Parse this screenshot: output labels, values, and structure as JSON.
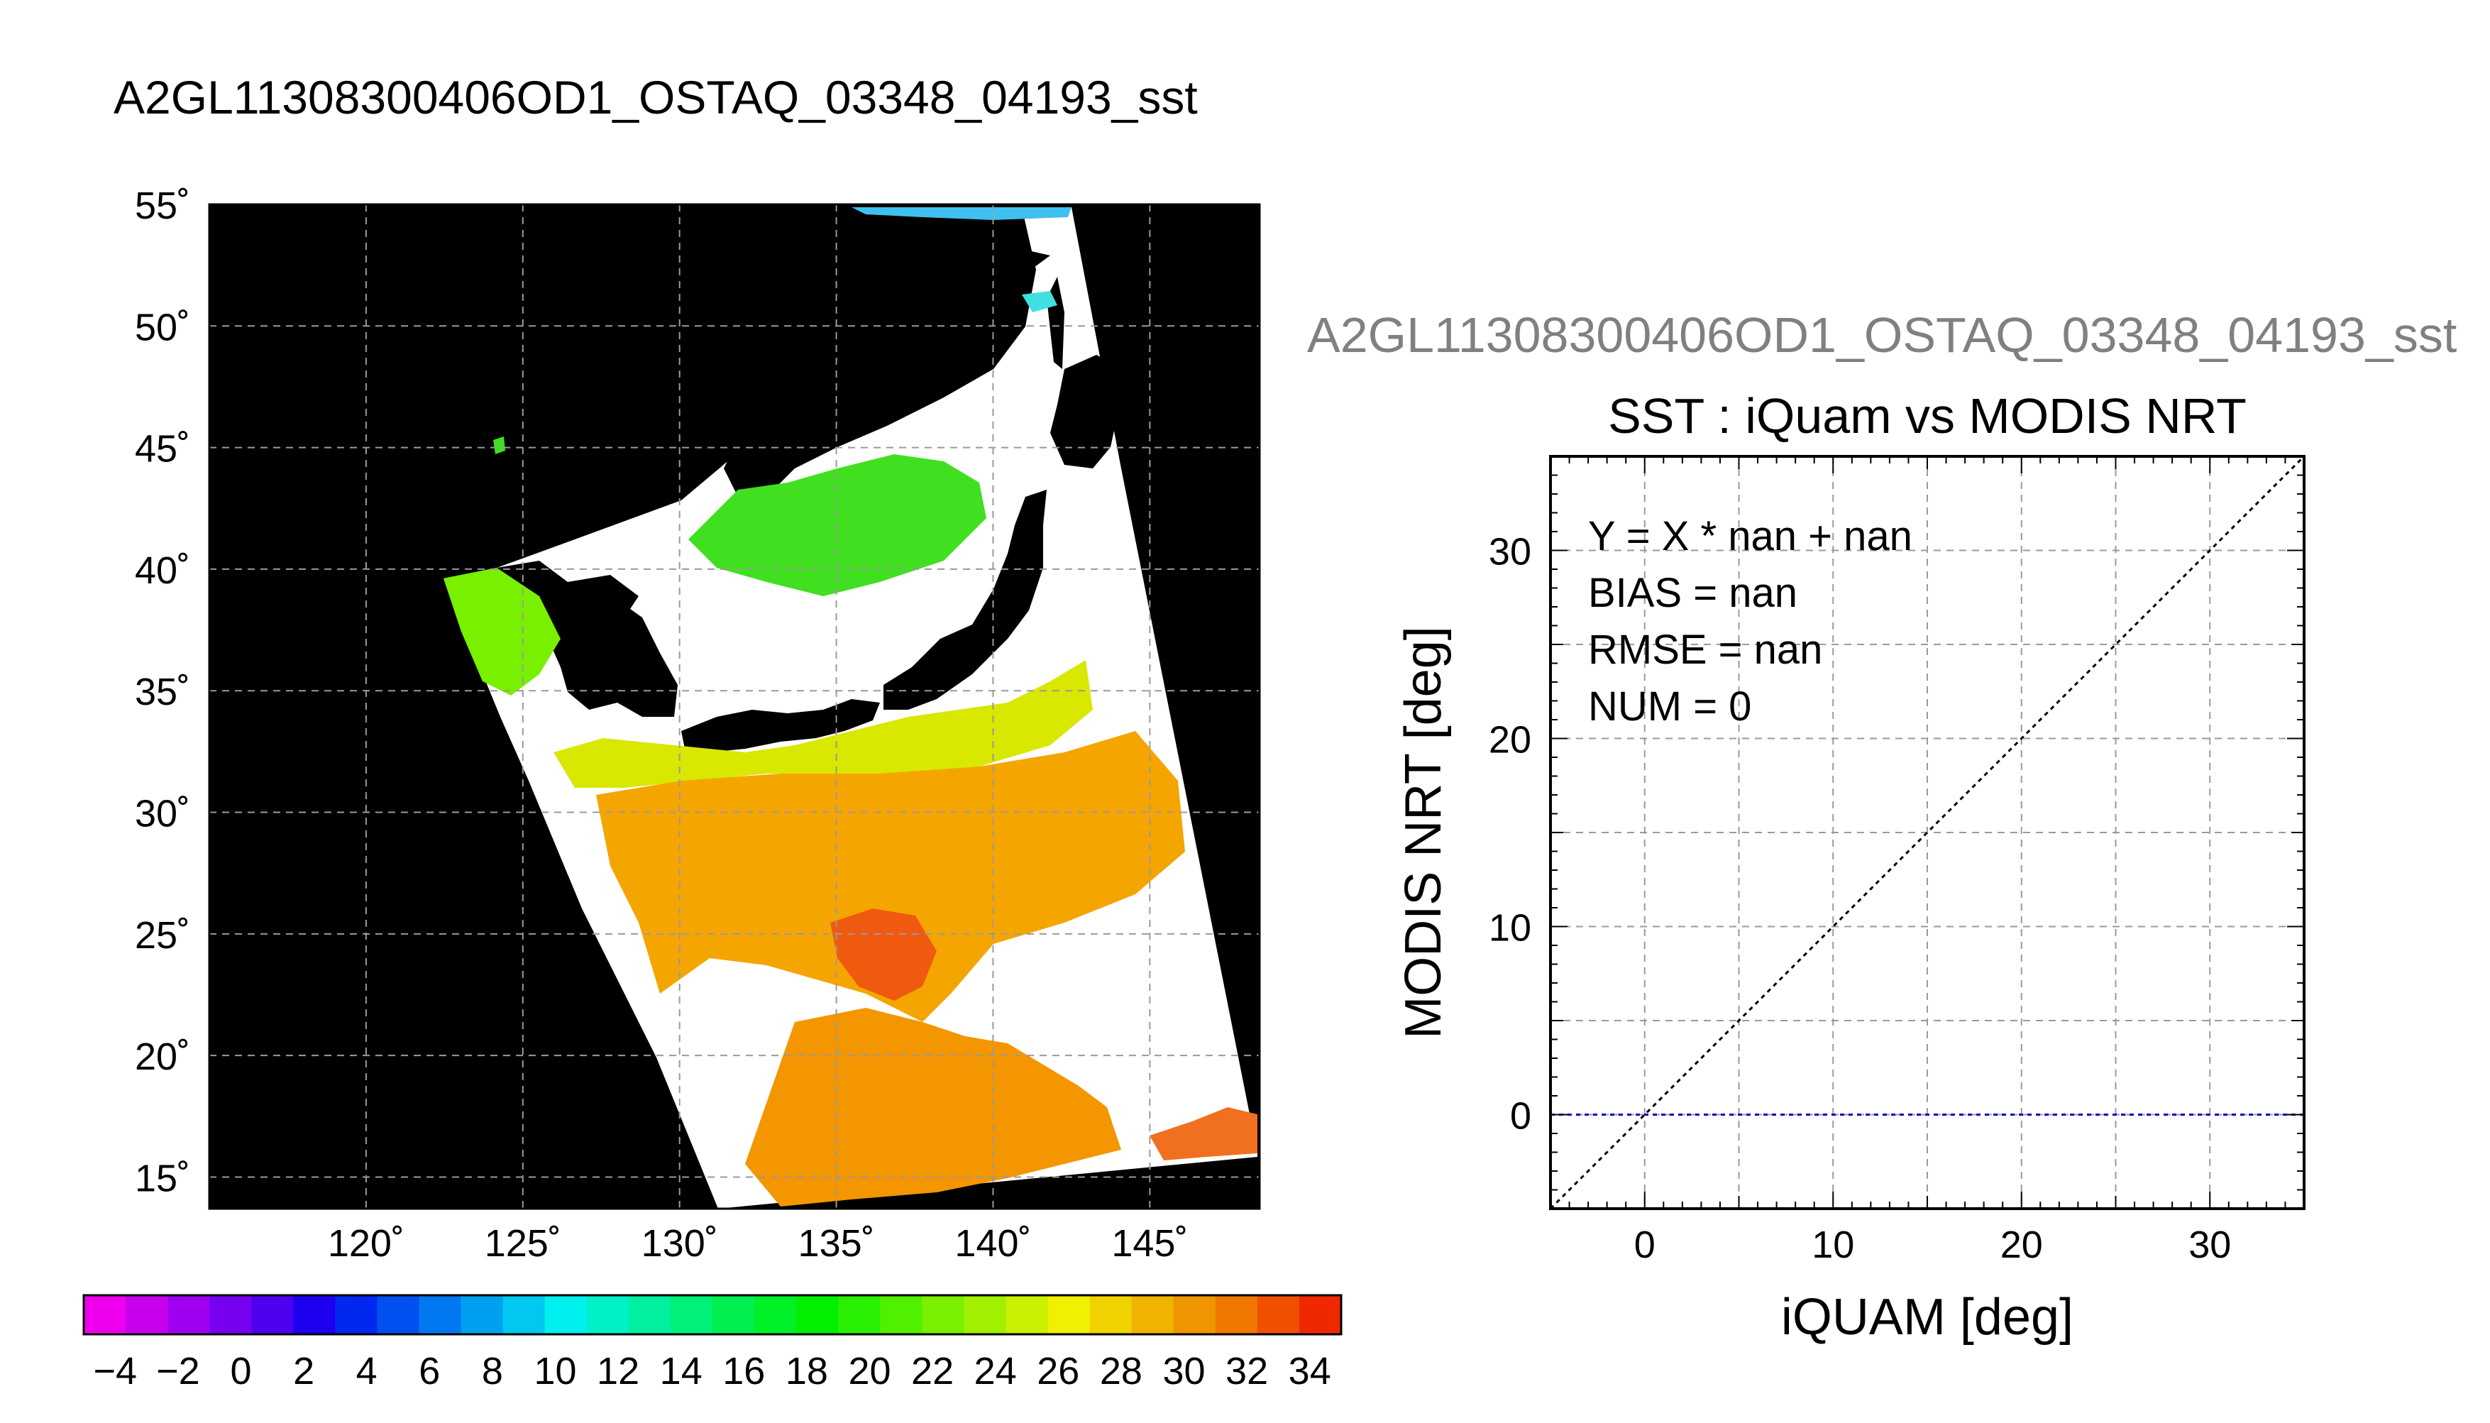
{
  "left_panel": {
    "title": "A2GL11308300406OD1_OSTAQ_03348_04193_sst"
  },
  "right_panel": {
    "header": "A2GL11308300406OD1_OSTAQ_03348_04193_sst"
  },
  "chart_data": [
    {
      "type": "heatmap",
      "title": "A2GL11308300406OD1_OSTAQ_03348_04193_sst",
      "xlabel": "",
      "ylabel": "",
      "x_ticks": [
        "120˚",
        "125˚",
        "130˚",
        "135˚",
        "140˚",
        "145˚"
      ],
      "x_tick_values": [
        120,
        125,
        130,
        135,
        140,
        145
      ],
      "y_ticks": [
        "15˚",
        "20˚",
        "25˚",
        "30˚",
        "35˚",
        "40˚",
        "45˚",
        "50˚",
        "55˚"
      ],
      "y_tick_values": [
        15,
        20,
        25,
        30,
        35,
        40,
        45,
        50,
        55
      ],
      "xlim": [
        115,
        148.5
      ],
      "ylim": [
        13.7,
        55
      ],
      "grid": true,
      "colorbar": {
        "labels": [
          "−4",
          "−2",
          "0",
          "2",
          "4",
          "6",
          "8",
          "10",
          "12",
          "14",
          "16",
          "18",
          "20",
          "22",
          "24",
          "26",
          "28",
          "30",
          "32",
          "34"
        ],
        "values": [
          -4,
          -2,
          0,
          2,
          4,
          6,
          8,
          10,
          12,
          14,
          16,
          18,
          20,
          22,
          24,
          26,
          28,
          30,
          32,
          34
        ],
        "range": [
          -5,
          35
        ],
        "colors": [
          "#ee00ee",
          "#c800ee",
          "#a000f0",
          "#7800f0",
          "#5000f0",
          "#1e00f0",
          "#0028f0",
          "#0050f0",
          "#0078f0",
          "#00a0f0",
          "#00c8f0",
          "#00f0f0",
          "#00f0c8",
          "#00f0a0",
          "#00f078",
          "#00f050",
          "#00f028",
          "#00f000",
          "#28f000",
          "#50f000",
          "#78f000",
          "#a0f000",
          "#c8f000",
          "#f0f000",
          "#f0d200",
          "#f0b400",
          "#f09600",
          "#f07800",
          "#f05000",
          "#f02800"
        ]
      },
      "legend": "colorbar-bottom"
    },
    {
      "type": "scatter",
      "title": "SST : iQuam vs MODIS NRT",
      "xlabel": "iQUAM [deg]",
      "ylabel": "MODIS NRT [deg]",
      "xlim": [
        -5,
        35
      ],
      "ylim": [
        -5,
        35
      ],
      "x_ticks": [
        0,
        10,
        20,
        30
      ],
      "y_ticks": [
        0,
        10,
        20,
        30
      ],
      "grid": true,
      "series": [
        {
          "role": "reference-line",
          "color": "#000000",
          "x": [
            -5,
            35
          ],
          "y": [
            -5,
            35
          ]
        },
        {
          "role": "fit-line",
          "color": "#0000c8",
          "x": [
            -5,
            35
          ],
          "y": [
            0,
            0
          ]
        }
      ],
      "stats": [
        "Y = X * nan + nan",
        "BIAS = nan",
        "RMSE = nan",
        "NUM = 0"
      ],
      "points": []
    }
  ]
}
